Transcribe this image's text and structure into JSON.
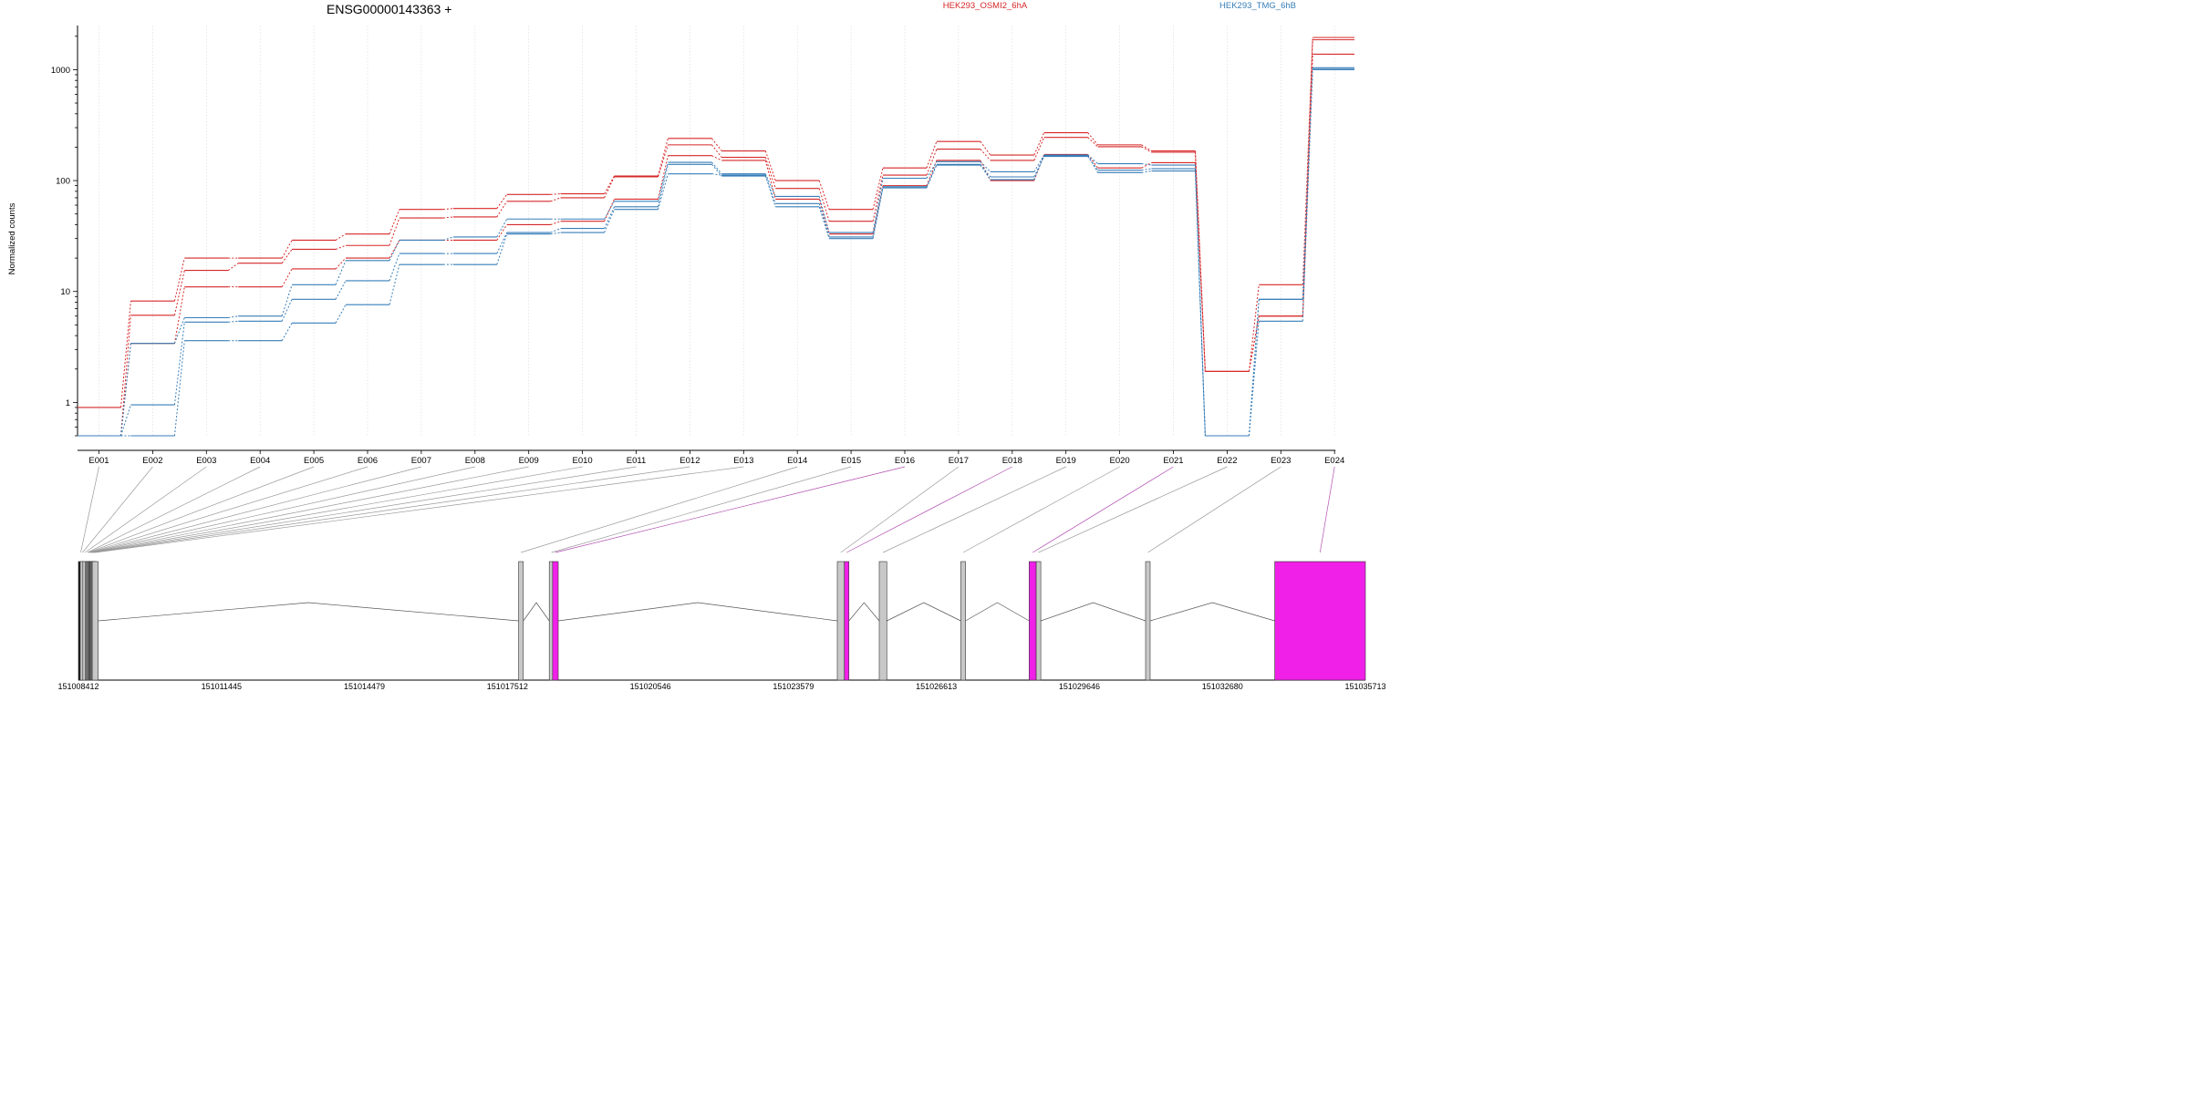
{
  "title": "ENSG00000143363 +",
  "legend": [
    {
      "label": "HEK293_OSMI2_6hA",
      "color": "#d62728"
    },
    {
      "label": "HEK293_TMG_6hB",
      "color": "#377eb8"
    }
  ],
  "colors": {
    "exon_default": "#c8c8c8",
    "exon_significant": "#f020e8",
    "connector_default": "#9a9a9a",
    "connector_significant": "#b04cb0"
  },
  "chart_data": {
    "type": "line",
    "title": "ENSG00000143363 +",
    "ylabel": "Normalized counts",
    "yscale": "log",
    "ylim": [
      0.5,
      2500
    ],
    "yticks": [
      1,
      10,
      100,
      1000
    ],
    "grid": true,
    "categories": [
      "E001",
      "E002",
      "E003",
      "E004",
      "E005",
      "E006",
      "E007",
      "E008",
      "E009",
      "E010",
      "E011",
      "E012",
      "E013",
      "E014",
      "E015",
      "E016",
      "E017",
      "E018",
      "E019",
      "E020",
      "E021",
      "E022",
      "E023",
      "E024"
    ],
    "series": [
      {
        "group": "HEK293_OSMI2_6hA",
        "color": "#d62728",
        "values": [
          0.9,
          8.2,
          20,
          20,
          29,
          33,
          55,
          56,
          75,
          76,
          110,
          240,
          185,
          100,
          55,
          130,
          225,
          170,
          270,
          210,
          185,
          1.9,
          11.5,
          1950
        ]
      },
      {
        "group": "HEK293_OSMI2_6hA",
        "color": "#d62728",
        "values": [
          0.5,
          6.1,
          15.5,
          18,
          24,
          26,
          46,
          47,
          65,
          70,
          108,
          210,
          162,
          85,
          43,
          112,
          192,
          152,
          245,
          202,
          180,
          1.9,
          6.0,
          1860
        ]
      },
      {
        "group": "HEK293_OSMI2_6hA",
        "color": "#d62728",
        "values": [
          0.5,
          3.4,
          11,
          11,
          16,
          20,
          29,
          29,
          40,
          43,
          68,
          168,
          152,
          68,
          33,
          90,
          152,
          100,
          172,
          130,
          145,
          1.9,
          6.0,
          1380
        ]
      },
      {
        "group": "HEK293_TMG_6hB",
        "color": "#377eb8",
        "values": [
          0.5,
          3.4,
          5.8,
          6,
          11.5,
          19,
          29,
          31,
          45,
          45,
          65,
          146,
          115,
          72,
          34,
          105,
          148,
          120,
          170,
          142,
          138,
          0.5,
          8.5,
          1040
        ]
      },
      {
        "group": "HEK293_TMG_6hB",
        "color": "#377eb8",
        "values": [
          0.5,
          0.95,
          5.3,
          5.4,
          8.5,
          12.5,
          22,
          22,
          34,
          37,
          58,
          140,
          110,
          62,
          31,
          88,
          140,
          108,
          165,
          124,
          128,
          0.5,
          8.5,
          1010
        ]
      },
      {
        "group": "HEK293_TMG_6hB",
        "color": "#377eb8",
        "values": [
          0.5,
          0.5,
          3.6,
          3.6,
          5.2,
          7.6,
          17.5,
          17.5,
          33,
          34,
          55,
          115,
          112,
          58,
          30,
          86,
          138,
          102,
          168,
          118,
          122,
          0.5,
          5.4,
          1000
        ]
      }
    ],
    "gene_model": {
      "coordinates": [
        "151008412",
        "151011445",
        "151014479",
        "151017512",
        "151020546",
        "151023579",
        "151026613",
        "151029646",
        "151032680",
        "151035713"
      ],
      "start": 151008412,
      "end": 151035713,
      "exons": [
        {
          "id": "E001",
          "start": 151008412,
          "end": 151008450,
          "significant": false,
          "black": true
        },
        {
          "id": "E002",
          "start": 151008450,
          "end": 151008505,
          "significant": false
        },
        {
          "id": "E003",
          "start": 151008505,
          "end": 151008560,
          "significant": false
        },
        {
          "id": "E004",
          "start": 151008560,
          "end": 151008580,
          "significant": false
        },
        {
          "id": "E005",
          "start": 151008580,
          "end": 151008600,
          "significant": false
        },
        {
          "id": "E006",
          "start": 151008600,
          "end": 151008615,
          "significant": false
        },
        {
          "id": "E007",
          "start": 151008615,
          "end": 151008630,
          "significant": false
        },
        {
          "id": "E008",
          "start": 151008630,
          "end": 151008645,
          "significant": false
        },
        {
          "id": "E009",
          "start": 151008645,
          "end": 151008660,
          "significant": false
        },
        {
          "id": "E010",
          "start": 151008660,
          "end": 151008675,
          "significant": false
        },
        {
          "id": "E011",
          "start": 151008675,
          "end": 151008690,
          "significant": false
        },
        {
          "id": "E012",
          "start": 151008690,
          "end": 151008705,
          "significant": false
        },
        {
          "id": "E013",
          "start": 151008705,
          "end": 151008830,
          "significant": false
        },
        {
          "id": "E014",
          "start": 151017750,
          "end": 151017850,
          "significant": false
        },
        {
          "id": "E015",
          "start": 151018400,
          "end": 151018470,
          "significant": false
        },
        {
          "id": "E016",
          "start": 151018470,
          "end": 151018590,
          "significant": true
        },
        {
          "id": "E017",
          "start": 151024510,
          "end": 151024660,
          "significant": false
        },
        {
          "id": "E018",
          "start": 151024660,
          "end": 151024710,
          "significant": true
        },
        {
          "id": "E019",
          "start": 151025400,
          "end": 151025560,
          "significant": false
        },
        {
          "id": "E020",
          "start": 151027130,
          "end": 151027230,
          "significant": false
        },
        {
          "id": "E021",
          "start": 151028580,
          "end": 151028730,
          "significant": true
        },
        {
          "id": "E022",
          "start": 151028730,
          "end": 151028750,
          "significant": false
        },
        {
          "id": "E023",
          "start": 151031050,
          "end": 151031130,
          "significant": false
        },
        {
          "id": "E024",
          "start": 151033790,
          "end": 151035713,
          "significant": true
        }
      ]
    }
  }
}
